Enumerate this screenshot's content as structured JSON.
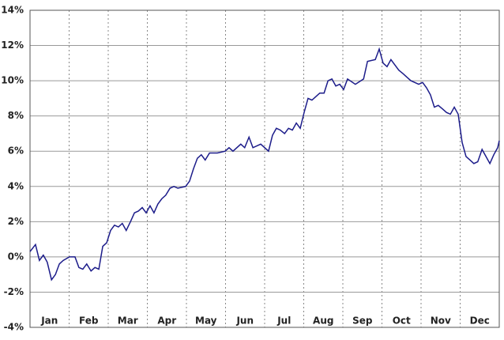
{
  "chart_data": {
    "type": "line",
    "categories": [
      "Jan",
      "Feb",
      "Mar",
      "Apr",
      "May",
      "Jun",
      "Jul",
      "Aug",
      "Sep",
      "Oct",
      "Nov",
      "Dec"
    ],
    "x": [
      0,
      0.14,
      0.24,
      0.34,
      0.44,
      0.55,
      0.65,
      0.75,
      0.85,
      1.01,
      1.15,
      1.25,
      1.35,
      1.45,
      1.56,
      1.66,
      1.76,
      1.86,
      1.96,
      2.06,
      2.16,
      2.26,
      2.36,
      2.46,
      2.57,
      2.67,
      2.77,
      2.87,
      2.97,
      3.07,
      3.17,
      3.27,
      3.37,
      3.47,
      3.58,
      3.68,
      3.78,
      3.98,
      4.08,
      4.18,
      4.28,
      4.38,
      4.48,
      4.59,
      4.79,
      4.99,
      5.09,
      5.19,
      5.39,
      5.49,
      5.6,
      5.7,
      5.9,
      6.1,
      6.2,
      6.3,
      6.4,
      6.51,
      6.61,
      6.71,
      6.81,
      6.91,
      7.01,
      7.11,
      7.21,
      7.31,
      7.41,
      7.52,
      7.62,
      7.72,
      7.82,
      7.92,
      8.02,
      8.12,
      8.32,
      8.53,
      8.63,
      8.83,
      8.93,
      9.03,
      9.13,
      9.23,
      9.33,
      9.43,
      9.54,
      9.64,
      9.74,
      9.84,
      9.94,
      10.04,
      10.14,
      10.24,
      10.34,
      10.44,
      10.55,
      10.65,
      10.75,
      10.85,
      10.95,
      11.05,
      11.15,
      11.25,
      11.35,
      11.45,
      11.56,
      11.66,
      11.76,
      11.86,
      11.96,
      12
    ],
    "values": [
      0.3,
      0.7,
      -0.2,
      0.1,
      -0.3,
      -1.3,
      -1.0,
      -0.4,
      -0.2,
      0.0,
      0.0,
      -0.6,
      -0.7,
      -0.4,
      -0.8,
      -0.6,
      -0.7,
      0.6,
      0.8,
      1.5,
      1.8,
      1.7,
      1.9,
      1.5,
      2.0,
      2.5,
      2.6,
      2.8,
      2.5,
      2.9,
      2.5,
      3.0,
      3.3,
      3.5,
      3.9,
      4.0,
      3.9,
      4.0,
      4.3,
      5.0,
      5.6,
      5.8,
      5.5,
      5.9,
      5.9,
      6.0,
      6.2,
      6.0,
      6.4,
      6.2,
      6.8,
      6.2,
      6.4,
      6.0,
      6.9,
      7.3,
      7.2,
      7.0,
      7.3,
      7.2,
      7.6,
      7.3,
      8.2,
      9.0,
      8.9,
      9.1,
      9.3,
      9.3,
      10.0,
      10.1,
      9.7,
      9.8,
      9.5,
      10.1,
      9.8,
      10.1,
      11.1,
      11.2,
      11.8,
      11.0,
      10.8,
      11.2,
      10.9,
      10.6,
      10.4,
      10.2,
      10.0,
      9.9,
      9.8,
      9.9,
      9.6,
      9.2,
      8.5,
      8.6,
      8.4,
      8.2,
      8.1,
      8.5,
      8.1,
      6.5,
      5.7,
      5.5,
      5.3,
      5.4,
      6.1,
      5.7,
      5.3,
      5.8,
      6.2,
      6.6
    ],
    "color": "#1c1c8a",
    "xlim": [
      0,
      12
    ],
    "ylim": [
      -4,
      14
    ],
    "yticks": [
      {
        "value": -4,
        "label": "-4%"
      },
      {
        "value": -2,
        "label": "-2%"
      },
      {
        "value": 0,
        "label": "0%"
      },
      {
        "value": 2,
        "label": "2%"
      },
      {
        "value": 4,
        "label": "4%"
      },
      {
        "value": 6,
        "label": "6%"
      },
      {
        "value": 8,
        "label": "8%"
      },
      {
        "value": 10,
        "label": "10%"
      },
      {
        "value": 12,
        "label": "12%"
      },
      {
        "value": 14,
        "label": "14%"
      }
    ],
    "grid": true
  }
}
